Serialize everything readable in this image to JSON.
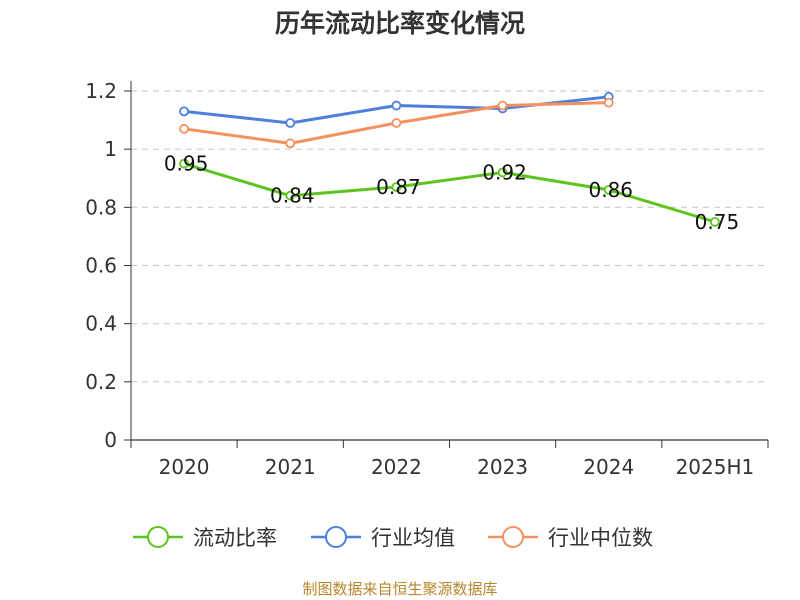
{
  "chart_data": {
    "type": "line",
    "title": "历年流动比率变化情况",
    "categories": [
      "2020",
      "2021",
      "2022",
      "2023",
      "2024",
      "2025H1"
    ],
    "ylim": [
      0,
      1.2
    ],
    "yticks": [
      0,
      0.2,
      0.4,
      0.6,
      0.8,
      1,
      1.2
    ],
    "ytick_labels": [
      "0",
      "0.2",
      "0.4",
      "0.6",
      "0.8",
      "1",
      "1.2"
    ],
    "grid": true,
    "legend_position": "bottom",
    "series": [
      {
        "name": "流动比率",
        "color": "#5dc41e",
        "values": [
          0.95,
          0.84,
          0.87,
          0.92,
          0.86,
          0.75
        ],
        "labels": [
          "0.95",
          "0.84",
          "0.87",
          "0.92",
          "0.86",
          "0.75"
        ],
        "show_labels": true
      },
      {
        "name": "行业均值",
        "color": "#4f7fdc",
        "values": [
          1.13,
          1.09,
          1.15,
          1.14,
          1.18,
          null
        ],
        "show_labels": false
      },
      {
        "name": "行业中位数",
        "color": "#f5915e",
        "values": [
          1.07,
          1.02,
          1.09,
          1.15,
          1.16,
          null
        ],
        "show_labels": false
      }
    ]
  },
  "footer": {
    "source": "制图数据来自恒生聚源数据库"
  }
}
